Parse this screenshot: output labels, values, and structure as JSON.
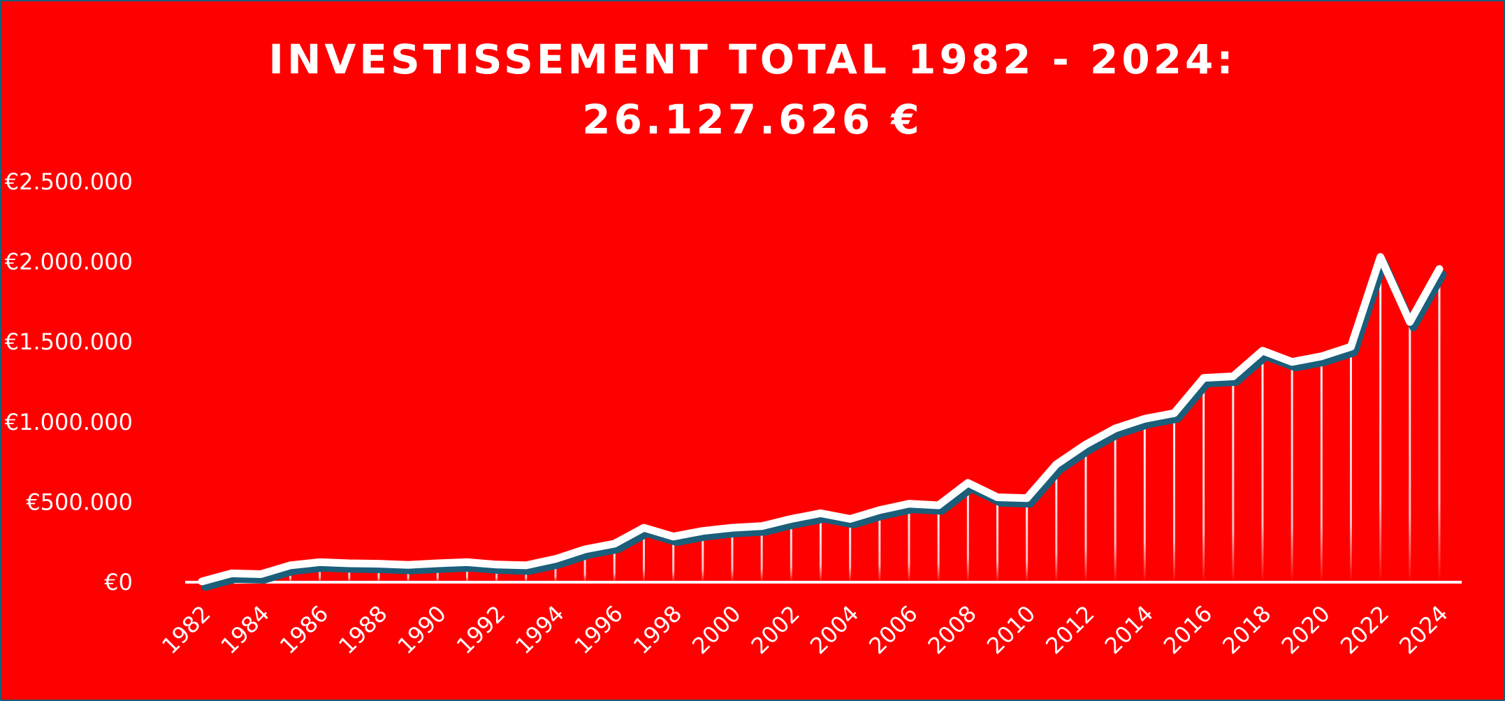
{
  "chart_data": {
    "type": "line",
    "title_line1": "INVESTISSEMENT TOTAL 1982 - 2024:",
    "title_line2": "26.127.626 €",
    "xlabel": "",
    "ylabel": "",
    "ylim": [
      0,
      2500000
    ],
    "y_ticks": [
      {
        "value": 0,
        "label": "€0"
      },
      {
        "value": 500000,
        "label": "€500.000"
      },
      {
        "value": 1000000,
        "label": "€1.000.000"
      },
      {
        "value": 1500000,
        "label": "€1.500.000"
      },
      {
        "value": 2000000,
        "label": "€2.000.000"
      },
      {
        "value": 2500000,
        "label": "€2.500.000"
      }
    ],
    "x_tick_labels": [
      "1982",
      "1984",
      "1986",
      "1988",
      "1990",
      "1992",
      "1994",
      "1996",
      "1998",
      "2000",
      "2002",
      "2004",
      "2006",
      "2008",
      "2010",
      "2012",
      "2014",
      "2016",
      "2018",
      "2020",
      "2022",
      "2024"
    ],
    "x": [
      1982,
      1983,
      1984,
      1985,
      1986,
      1987,
      1988,
      1989,
      1990,
      1991,
      1992,
      1993,
      1994,
      1995,
      1996,
      1997,
      1998,
      1999,
      2000,
      2001,
      2002,
      2003,
      2004,
      2005,
      2006,
      2007,
      2008,
      2009,
      2010,
      2011,
      2012,
      2013,
      2014,
      2015,
      2016,
      2017,
      2018,
      2019,
      2020,
      2021,
      2022,
      2023,
      2024
    ],
    "series": [
      {
        "values": [
          5000,
          55000,
          50000,
          105000,
          125000,
          118000,
          115000,
          108000,
          118000,
          125000,
          110000,
          105000,
          145000,
          205000,
          240000,
          340000,
          285000,
          320000,
          340000,
          350000,
          395000,
          430000,
          395000,
          450000,
          490000,
          480000,
          620000,
          530000,
          525000,
          735000,
          860000,
          960000,
          1020000,
          1055000,
          1275000,
          1285000,
          1445000,
          1375000,
          1410000,
          1470000,
          2030000,
          1625000,
          1955000
        ]
      }
    ],
    "grid": false,
    "legend": "none",
    "colors": {
      "background": "#ff0000",
      "border": "#1b5e7a",
      "line": "#ffffff",
      "shadow": "#1b5e7a",
      "text": "#ffffff"
    }
  }
}
